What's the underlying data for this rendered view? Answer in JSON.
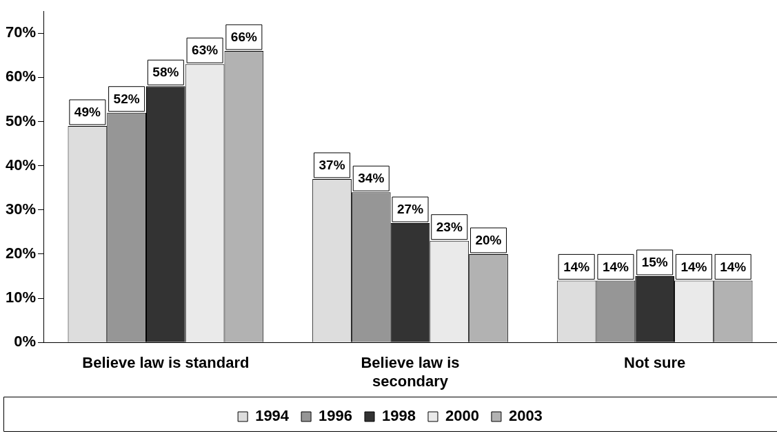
{
  "chart_data": {
    "type": "bar",
    "categories": [
      "Believe law is standard",
      "Believe law is secondary",
      "Not sure"
    ],
    "series": [
      {
        "name": "1994",
        "color": "#dddddd",
        "values": [
          49,
          37,
          14
        ],
        "value_labels": [
          "49%",
          "37%",
          "14%"
        ]
      },
      {
        "name": "1996",
        "color": "#969696",
        "values": [
          52,
          34,
          14
        ],
        "value_labels": [
          "52%",
          "34%",
          "14%"
        ]
      },
      {
        "name": "1998",
        "color": "#333333",
        "values": [
          58,
          27,
          15
        ],
        "value_labels": [
          "58%",
          "27%",
          "15%"
        ]
      },
      {
        "name": "2000",
        "color": "#eaeaea",
        "values": [
          63,
          23,
          14
        ],
        "value_labels": [
          "63%",
          "23%",
          "14%"
        ]
      },
      {
        "name": "2003",
        "color": "#b2b2b2",
        "values": [
          66,
          20,
          14
        ],
        "value_labels": [
          "66%",
          "20%",
          "14%"
        ]
      }
    ],
    "ylim": [
      0,
      75
    ],
    "yticks": [
      {
        "value": 0,
        "label": "0%"
      },
      {
        "value": 10,
        "label": "10%"
      },
      {
        "value": 20,
        "label": "20%"
      },
      {
        "value": 30,
        "label": "30%"
      },
      {
        "value": 40,
        "label": "40%"
      },
      {
        "value": 50,
        "label": "50%"
      },
      {
        "value": 60,
        "label": "60%"
      },
      {
        "value": 70,
        "label": "70%"
      }
    ],
    "grid": false,
    "legend": "bottom"
  }
}
